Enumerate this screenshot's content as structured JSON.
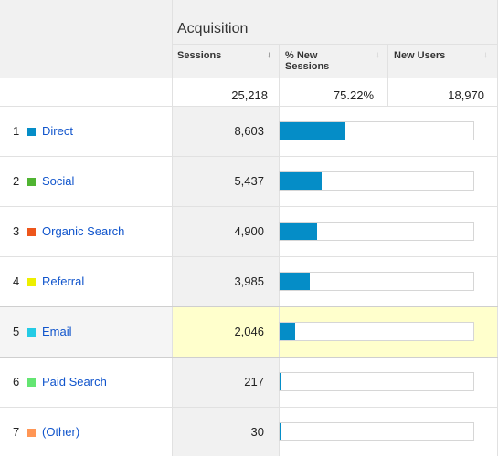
{
  "header": {
    "group_title": "Acquisition",
    "columns": [
      {
        "label_line1": "Sessions",
        "label_line2": "",
        "sort_icon": "arrow-down-icon"
      },
      {
        "label_line1": "% New",
        "label_line2": "Sessions",
        "sort_icon": "arrow-down-icon"
      },
      {
        "label_line1": "New Users",
        "label_line2": "",
        "sort_icon": "arrow-down-icon"
      }
    ]
  },
  "totals": {
    "sessions": "25,218",
    "pct_new_sessions": "75.22%",
    "new_users": "18,970"
  },
  "rows": [
    {
      "index": "1",
      "channel": "Direct",
      "color": "#058dc7",
      "sessions": "8,603",
      "share": 0.341
    },
    {
      "index": "2",
      "channel": "Social",
      "color": "#50b432",
      "sessions": "5,437",
      "share": 0.216
    },
    {
      "index": "3",
      "channel": "Organic Search",
      "color": "#ed561b",
      "sessions": "4,900",
      "share": 0.194
    },
    {
      "index": "4",
      "channel": "Referral",
      "color": "#edef00",
      "sessions": "3,985",
      "share": 0.158
    },
    {
      "index": "5",
      "channel": "Email",
      "color": "#24cbe5",
      "sessions": "2,046",
      "share": 0.081
    },
    {
      "index": "6",
      "channel": "Paid Search",
      "color": "#64e572",
      "sessions": "217",
      "share": 0.009
    },
    {
      "index": "7",
      "channel": "(Other)",
      "color": "#ff9655",
      "sessions": "30",
      "share": 0.001
    }
  ],
  "bar_color": "#058dc7"
}
